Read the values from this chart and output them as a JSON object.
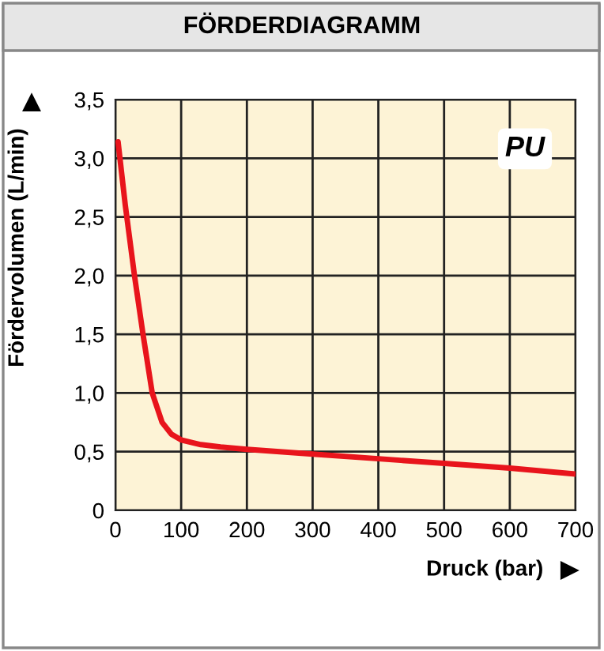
{
  "chart_data": {
    "type": "line",
    "title": "FÖRDERDIAGRAMM",
    "xlabel": "Druck (bar)",
    "ylabel": "Fördervolumen (L/min)",
    "annotations": [
      "PU"
    ],
    "x": [
      4,
      15,
      29,
      42,
      56,
      71,
      85,
      100,
      130,
      160,
      200,
      250,
      300,
      400,
      500,
      600,
      700
    ],
    "series": [
      {
        "color": "#e8141c",
        "values": [
          3.14,
          2.6,
          2.0,
          1.5,
          1.0,
          0.75,
          0.65,
          0.6,
          0.56,
          0.54,
          0.52,
          0.5,
          0.48,
          0.44,
          0.4,
          0.36,
          0.31
        ]
      }
    ],
    "xlim": [
      0,
      700
    ],
    "ylim": [
      0,
      3.5
    ],
    "xticks": [
      0,
      100,
      200,
      300,
      400,
      500,
      600,
      700
    ],
    "yticks": [
      0,
      {
        "value": 0.5,
        "label": "0,5"
      },
      {
        "value": 1.0,
        "label": "1,0"
      },
      {
        "value": 1.5,
        "label": "1,5"
      },
      {
        "value": 2.0,
        "label": "2,0"
      },
      {
        "value": 2.5,
        "label": "2,5"
      },
      {
        "value": 3.0,
        "label": "3,0"
      },
      {
        "value": 3.5,
        "label": "3,5"
      }
    ],
    "grid": true,
    "legend": false,
    "marker": "none",
    "line_style": "solid"
  }
}
